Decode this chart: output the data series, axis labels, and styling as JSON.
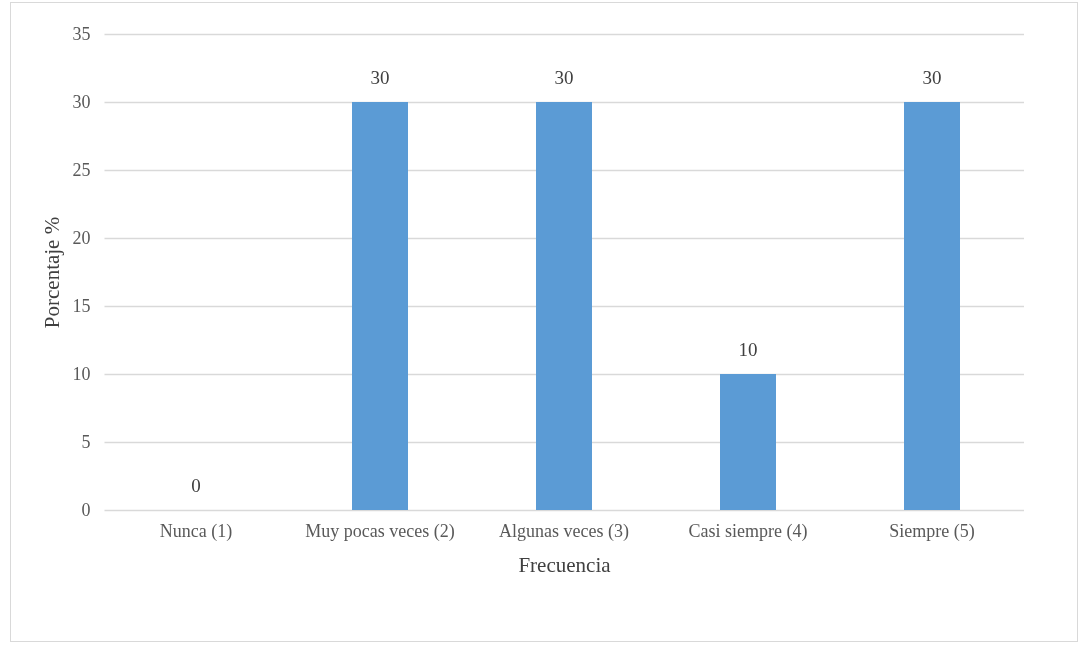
{
  "chart_data": {
    "type": "bar",
    "xlabel": "Frecuencia",
    "ylabel": "Porcentaje %",
    "categories": [
      "Nunca (1)",
      "Muy pocas veces (2)",
      "Algunas veces (3)",
      "Casi siempre (4)",
      "Siempre (5)"
    ],
    "values": [
      0,
      30,
      30,
      10,
      30
    ],
    "color": "#5b9bd5",
    "ylim": [
      0,
      35
    ],
    "yticks": [
      0,
      5,
      10,
      15,
      20,
      25,
      30,
      35
    ],
    "grid": "y",
    "data_labels": true
  }
}
